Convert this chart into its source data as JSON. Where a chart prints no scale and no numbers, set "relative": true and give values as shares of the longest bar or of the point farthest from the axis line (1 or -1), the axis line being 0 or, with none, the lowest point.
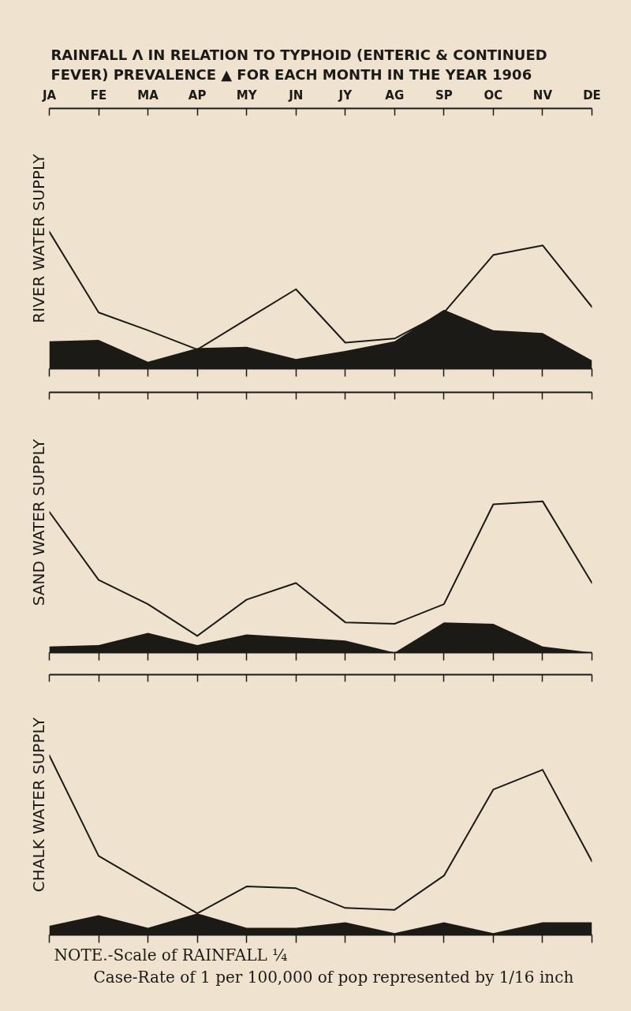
{
  "chart_data": [
    {
      "type": "line",
      "title": "RAINFALL Λ IN RELATION TO TYPHOID (ENTERIC & CONTINUED FEVER) PREVALENCE ▲ FOR EACH MONTH IN THE YEAR 1906",
      "ylabel": "RIVER WATER SUPPLY",
      "categories": [
        "JA",
        "FE",
        "MA",
        "AP",
        "MY",
        "JN",
        "JY",
        "AG",
        "SP",
        "OC",
        "NV",
        "DE"
      ],
      "relative": true,
      "tick_labels": "x",
      "series": [
        {
          "type": "area",
          "color": "#1c1a17",
          "values": [
            0.2,
            0.21,
            0.05,
            0.15,
            0.16,
            0.07,
            0.13,
            0.2,
            0.43,
            0.28,
            0.26,
            0.06
          ]
        },
        {
          "color": "#1c1a17",
          "values": [
            1.0,
            0.41,
            0.28,
            0.14,
            0.36,
            0.58,
            0.19,
            0.22,
            0.41,
            0.83,
            0.9,
            0.45
          ]
        }
      ]
    },
    {
      "type": "line",
      "ylabel": "SAND WATER SUPPLY",
      "categories": [
        "JA",
        "FE",
        "MA",
        "AP",
        "MY",
        "JN",
        "JY",
        "AG",
        "SP",
        "OC",
        "NV",
        "DE"
      ],
      "relative": true,
      "tick_labels": false,
      "series": [
        {
          "type": "area",
          "color": "#1c1a17",
          "values": [
            0.04,
            0.05,
            0.13,
            0.05,
            0.12,
            0.1,
            0.08,
            0.0,
            0.2,
            0.19,
            0.04,
            0.0
          ]
        },
        {
          "color": "#1c1a17",
          "values": [
            0.93,
            0.48,
            0.32,
            0.11,
            0.35,
            0.46,
            0.2,
            0.19,
            0.32,
            0.98,
            1.0,
            0.46
          ]
        }
      ]
    },
    {
      "type": "line",
      "ylabel": "CHALK WATER SUPPLY",
      "categories": [
        "JA",
        "FE",
        "MA",
        "AP",
        "MY",
        "JN",
        "JY",
        "AG",
        "SP",
        "OC",
        "NV",
        "DE"
      ],
      "relative": true,
      "tick_labels": false,
      "series": [
        {
          "type": "area",
          "color": "#1c1a17",
          "values": [
            0.05,
            0.11,
            0.04,
            0.12,
            0.04,
            0.04,
            0.07,
            0.01,
            0.07,
            0.01,
            0.07,
            0.07
          ]
        },
        {
          "color": "#1c1a17",
          "values": [
            1.0,
            0.44,
            0.28,
            0.12,
            0.27,
            0.26,
            0.15,
            0.14,
            0.33,
            0.81,
            0.92,
            0.41
          ]
        }
      ],
      "annotations": [
        "NOTE.-Scale of RAINFALL ¼",
        "Case-Rate of 1 per 100,000 of pop represented by 1/16 inch"
      ]
    }
  ]
}
